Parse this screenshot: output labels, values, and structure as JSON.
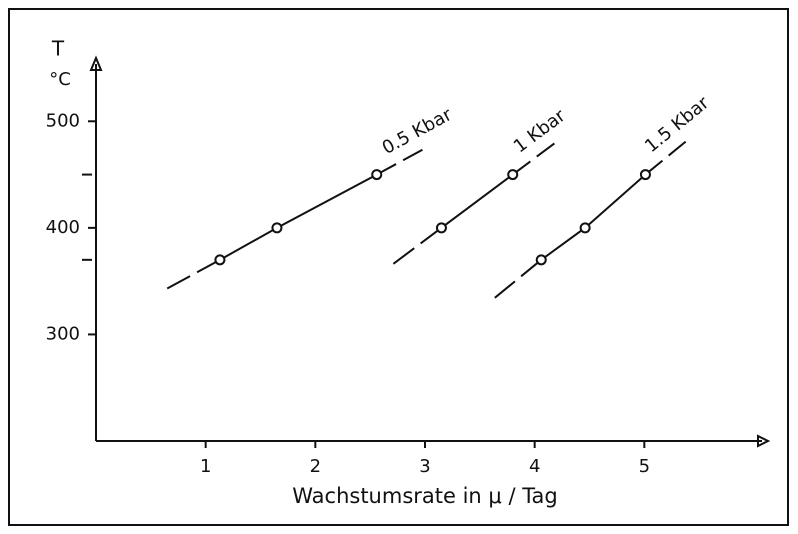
{
  "chart_data": {
    "type": "line",
    "ylabel": "T",
    "yunit": "°C",
    "xlabel": "Wachstumsrate in μ / Tag",
    "xlim": [
      0,
      6
    ],
    "ylim": [
      200,
      550
    ],
    "xticks": [
      1,
      2,
      3,
      4,
      5
    ],
    "yticks": [
      300,
      400,
      500
    ],
    "minor_yticks": [
      370,
      450
    ],
    "color": "#111111",
    "series": [
      {
        "name": "0.5 Kbar",
        "x": [
          1.13,
          1.65,
          2.56
        ],
        "values": [
          370,
          400,
          450
        ]
      },
      {
        "name": "1 Kbar",
        "x": [
          3.15,
          3.8
        ],
        "values": [
          400,
          450
        ]
      },
      {
        "name": "1.5 Kbar",
        "x": [
          4.06,
          4.46,
          5.01
        ],
        "values": [
          370,
          400,
          450
        ]
      }
    ]
  }
}
